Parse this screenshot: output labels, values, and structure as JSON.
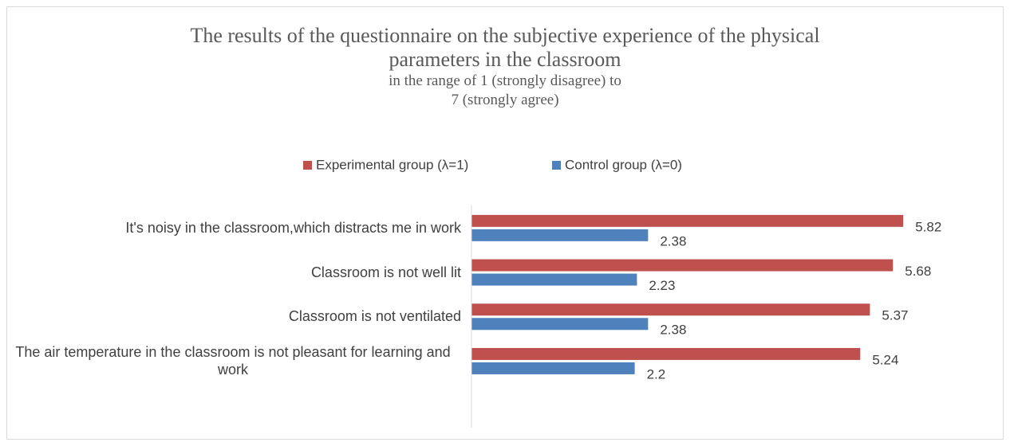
{
  "chart_data": {
    "type": "hbar",
    "title": "The results of the questionnaire on the subjective experience of the physical parameters in the classroom",
    "subtitle": "in the range of 1 (strongly disagree) to 7 (strongly agree)",
    "categories": [
      "It's noisy in the classroom,which distracts me in work",
      "Classroom is not well lit",
      "Classroom is not ventilated",
      "The air temperature in the classroom is not pleasant for learning and work"
    ],
    "series": [
      {
        "name": "Experimental group (λ=1)",
        "color": "#c0504d",
        "values": [
          5.82,
          5.68,
          5.37,
          5.24
        ]
      },
      {
        "name": "Control group (λ=0)",
        "color": "#4f81bd",
        "values": [
          2.38,
          2.23,
          2.38,
          2.2
        ]
      }
    ],
    "xlim": [
      0,
      7
    ]
  }
}
